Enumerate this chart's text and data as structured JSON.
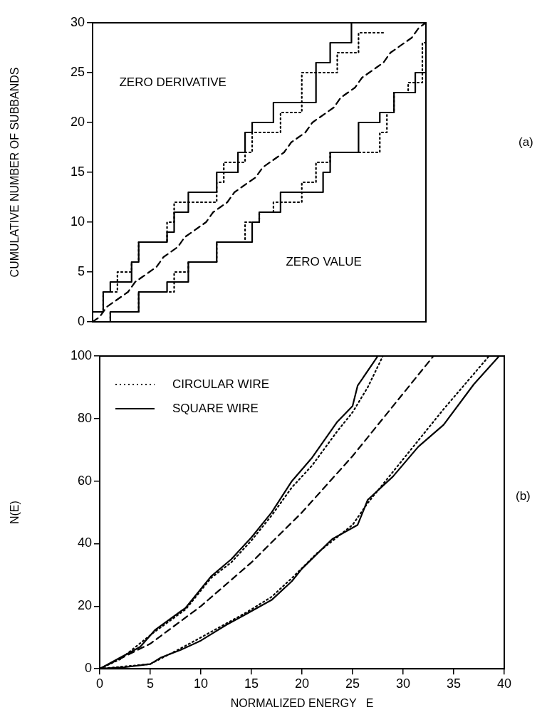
{
  "chart_data": [
    {
      "type": "step",
      "ylabel": "CUMULATIVE NUMBER OF SUBBANDS",
      "categories": [
        null,
        null,
        null,
        null,
        null,
        null,
        null,
        null,
        null,
        null,
        null,
        null,
        null,
        null,
        null,
        null,
        null,
        null,
        null,
        null,
        null,
        null,
        null,
        null,
        null,
        null,
        null,
        null,
        null,
        null,
        null,
        null,
        null,
        null,
        null,
        null,
        null,
        null,
        null,
        null,
        null,
        null,
        null,
        null,
        null,
        null,
        null,
        null
      ],
      "ylim": [
        0,
        30
      ],
      "yticks": [
        0,
        5,
        10,
        15,
        20,
        25,
        30
      ],
      "tick_labels": "y",
      "marker": "none",
      "annotations": [
        "ZERO DERIVATIVE",
        "ZERO VALUE",
        "(a)"
      ],
      "series": [
        {
          "color": "#000000",
          "line_style": "solid",
          "values": [
            1,
            1,
            3,
            4,
            4,
            4,
            6,
            8,
            8,
            8,
            8,
            9,
            11,
            11,
            13,
            13,
            13,
            13,
            15,
            15,
            15,
            17,
            19,
            20,
            20,
            20,
            22,
            22,
            22,
            22,
            22,
            22,
            26,
            26,
            28,
            28,
            28,
            30,
            30,
            30,
            null,
            null,
            null,
            null,
            null,
            null,
            null,
            null
          ]
        },
        {
          "color": "#000000",
          "line_style": "dotted",
          "values": [
            1,
            1,
            3,
            3,
            5,
            5,
            6,
            8,
            8,
            8,
            8,
            10,
            12,
            12,
            12,
            12,
            12,
            12,
            14,
            16,
            16,
            16,
            17,
            19,
            19,
            19,
            19,
            21,
            21,
            21,
            25,
            25,
            25,
            25,
            25,
            27,
            27,
            27,
            29,
            29,
            29,
            29,
            null,
            null,
            null,
            null,
            null,
            null
          ]
        },
        {
          "color": "#000000",
          "line_style": "solid",
          "values": [
            0,
            0,
            0,
            1,
            1,
            1,
            1,
            3,
            3,
            3,
            3,
            4,
            4,
            4,
            6,
            6,
            6,
            6,
            8,
            8,
            8,
            8,
            8,
            10,
            11,
            11,
            11,
            13,
            13,
            13,
            13,
            13,
            13,
            15,
            17,
            17,
            17,
            17,
            20,
            20,
            20,
            21,
            21,
            23,
            23,
            23,
            25,
            25
          ]
        },
        {
          "color": "#000000",
          "line_style": "dotted",
          "values": [
            0,
            0,
            0,
            1,
            1,
            1,
            1,
            3,
            3,
            3,
            3,
            3,
            5,
            5,
            6,
            6,
            6,
            6,
            8,
            8,
            8,
            8,
            10,
            10,
            11,
            11,
            12,
            12,
            12,
            12,
            14,
            14,
            16,
            16,
            17,
            17,
            17,
            17,
            17,
            17,
            17,
            19,
            21,
            23,
            23,
            24,
            24,
            28
          ]
        },
        {
          "type": "line",
          "color": "#000000",
          "line_style": "dashed",
          "values": [
            0,
            0.5,
            1.5,
            2,
            2.5,
            3,
            4,
            4.5,
            5,
            5.5,
            6.5,
            7,
            7.5,
            8.5,
            9,
            9.5,
            10,
            11,
            11.5,
            12,
            13,
            13.5,
            14,
            14.5,
            15.5,
            16,
            16.5,
            17,
            18,
            18.5,
            19,
            20,
            20.5,
            21,
            21.5,
            22.5,
            23,
            23.5,
            24.5,
            25,
            25.5,
            26,
            27,
            27.5,
            28,
            28.5,
            29.5,
            30
          ]
        }
      ]
    },
    {
      "type": "line",
      "xlabel": "NORMALIZED ENERGY   E",
      "ylabel": "N(E)",
      "xlim": [
        0,
        40
      ],
      "xticks": [
        0,
        5,
        10,
        15,
        20,
        25,
        30,
        35,
        40
      ],
      "ylim": [
        0,
        100
      ],
      "yticks": [
        0,
        20,
        40,
        60,
        80,
        100
      ],
      "legend": "top left",
      "marker": "none",
      "annotations": [
        "(b)"
      ],
      "series": [
        {
          "name": "CIRCULAR WIRE",
          "color": "#000000",
          "line_style": "dotted",
          "x": [
            0,
            2,
            5.5,
            8.5,
            11,
            13,
            15,
            17,
            19,
            21,
            23.5,
            25,
            26.5,
            28
          ],
          "values": [
            0,
            3,
            12,
            19,
            29,
            34,
            41,
            49,
            58,
            65,
            76,
            82,
            90,
            100
          ]
        },
        {
          "name": "SQUARE WIRE",
          "color": "#000000",
          "line_style": "solid",
          "x": [
            0,
            2,
            4,
            5.5,
            8.5,
            11,
            13,
            15,
            17,
            19,
            21,
            23.5,
            25,
            25.5,
            27.5
          ],
          "values": [
            0,
            3.5,
            7,
            12.5,
            19.5,
            29.5,
            35,
            42,
            50,
            60,
            67.5,
            79,
            84,
            90.5,
            100
          ]
        },
        {
          "color": "#000000",
          "line_style": "dashed",
          "x": [
            0,
            5,
            10,
            15,
            20,
            25,
            30,
            33
          ],
          "values": [
            0,
            8,
            20,
            34,
            50,
            68,
            88,
            100
          ]
        },
        {
          "color": "#000000",
          "line_style": "solid",
          "x": [
            0,
            2.5,
            5,
            6,
            8,
            10,
            11,
            12.5,
            14.5,
            17,
            19,
            20,
            23,
            25.5,
            26.5,
            29,
            31.5,
            34,
            37,
            39.5
          ],
          "values": [
            0,
            0.5,
            1.5,
            3.5,
            6,
            9,
            11,
            14,
            17.5,
            22,
            28,
            32,
            41.5,
            46,
            54,
            61.5,
            71,
            78,
            91,
            100
          ]
        },
        {
          "color": "#000000",
          "line_style": "dotted",
          "x": [
            0,
            5,
            8,
            10,
            14.5,
            17,
            19,
            21.5,
            25,
            26.5,
            28.5,
            31.5,
            34,
            38.5
          ],
          "values": [
            0,
            1.5,
            6.5,
            10,
            18,
            23,
            29,
            37,
            46,
            53,
            61,
            73,
            83,
            100
          ]
        }
      ]
    }
  ]
}
